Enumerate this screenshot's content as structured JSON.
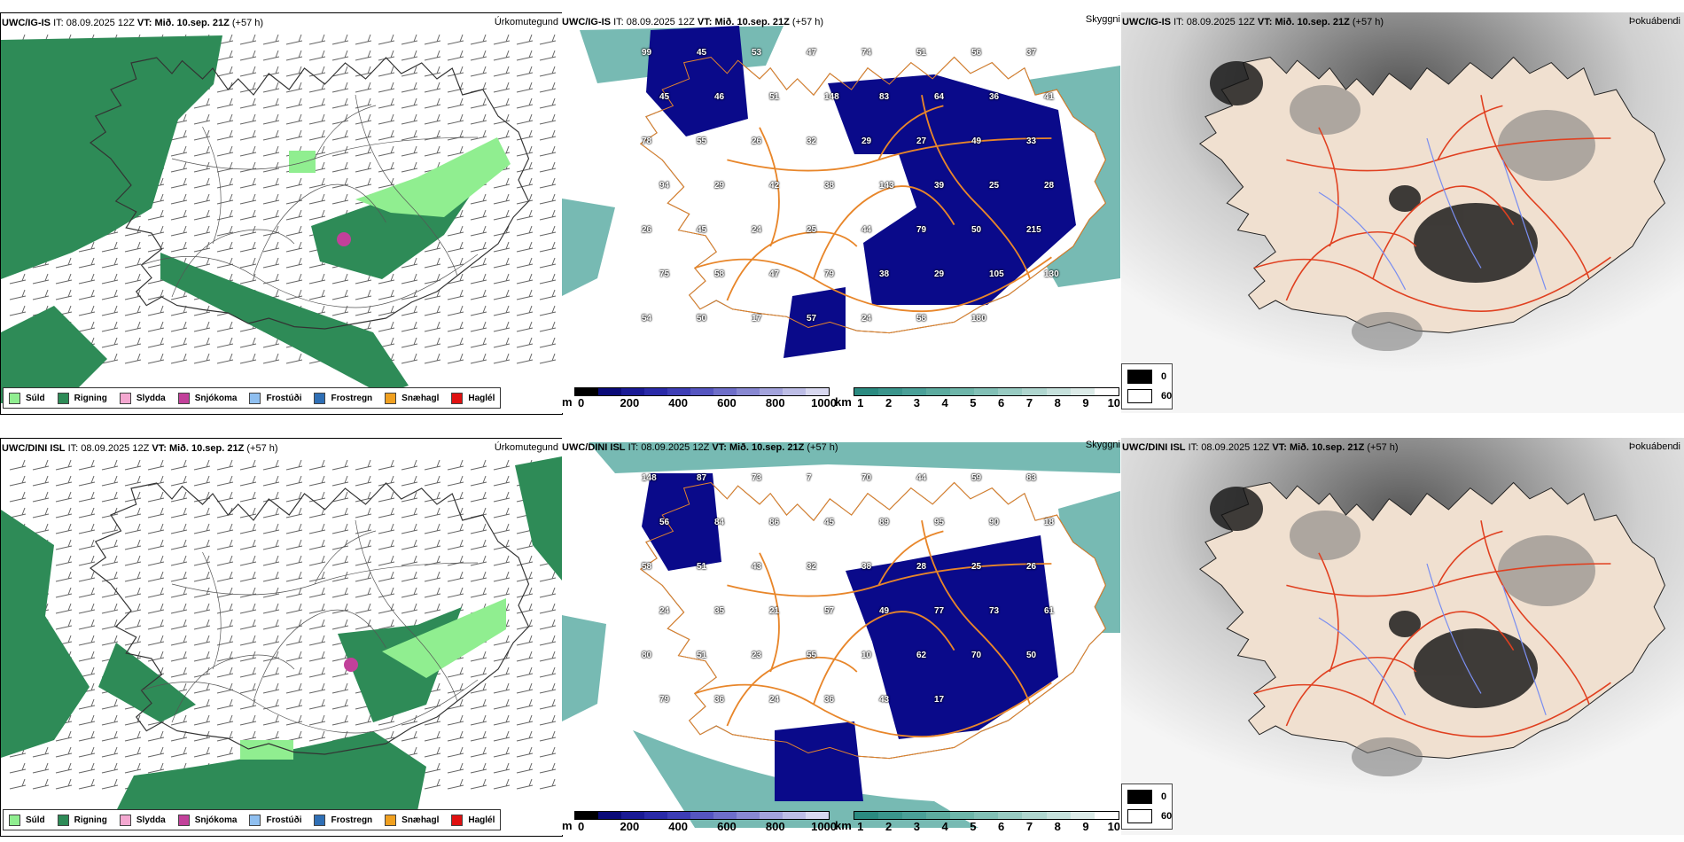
{
  "top": {
    "precip": {
      "model": "UWC/IG-IS",
      "it_label": "IT:",
      "it": "08.09.2025 12Z",
      "vt_label": "VT:",
      "vt": "Mið. 10.sep. 21Z",
      "lead": "(+57 h)",
      "right": "Úrkomutegund"
    },
    "ceiling": {
      "model": "UWC/IG-IS",
      "it_label": "IT:",
      "it": "08.09.2025 12Z",
      "vt_label": "VT:",
      "vt": "Mið. 10.sep. 21Z",
      "lead": "(+57 h)",
      "right": "Skyggni",
      "numbers": [
        "99",
        "45",
        "53",
        "47",
        "74",
        "51",
        "56",
        "37",
        "45",
        "46",
        "51",
        "148",
        "83",
        "64",
        "36",
        "41",
        "78",
        "55",
        "26",
        "32",
        "29",
        "27",
        "49",
        "33",
        "94",
        "29",
        "42",
        "38",
        "143",
        "39",
        "25",
        "28",
        "26",
        "45",
        "24",
        "25",
        "44",
        "79",
        "50",
        "215",
        "75",
        "58",
        "47",
        "79",
        "38",
        "29",
        "105",
        "130",
        "54",
        "50",
        "17",
        "57",
        "24",
        "58",
        "180"
      ]
    },
    "fog": {
      "model": "UWC/IG-IS",
      "it_label": "IT:",
      "it": "08.09.2025 12Z",
      "vt_label": "VT:",
      "vt": "Mið. 10.sep. 21Z",
      "lead": "(+57 h)",
      "right": "Þokuábendi"
    }
  },
  "bottom": {
    "precip": {
      "model": "UWC/DINI ISL",
      "it_label": "IT:",
      "it": "08.09.2025 12Z",
      "vt_label": "VT:",
      "vt": "Mið. 10.sep. 21Z",
      "lead": "(+57 h)",
      "right": "Úrkomutegund"
    },
    "ceiling": {
      "model": "UWC/DINI ISL",
      "it_label": "IT:",
      "it": "08.09.2025 12Z",
      "vt_label": "VT:",
      "vt": "Mið. 10.sep. 21Z",
      "lead": "(+57 h)",
      "right": "Skyggni",
      "numbers": [
        "148",
        "87",
        "73",
        "7",
        "70",
        "44",
        "59",
        "83",
        "56",
        "84",
        "86",
        "45",
        "89",
        "95",
        "90",
        "18",
        "58",
        "51",
        "43",
        "32",
        "38",
        "28",
        "25",
        "26",
        "24",
        "35",
        "21",
        "57",
        "49",
        "77",
        "73",
        "61",
        "80",
        "51",
        "23",
        "55",
        "10",
        "62",
        "70",
        "50",
        "79",
        "36",
        "24",
        "36",
        "43",
        "17"
      ]
    },
    "fog": {
      "model": "UWC/DINI ISL",
      "it_label": "IT:",
      "it": "08.09.2025 12Z",
      "vt_label": "VT:",
      "vt": "Mið. 10.sep. 21Z",
      "lead": "(+57 h)",
      "right": "Þokuábendi"
    }
  },
  "precip_legend": [
    {
      "label": "Súld",
      "color": "#90ee90"
    },
    {
      "label": "Rigning",
      "color": "#2e8b57"
    },
    {
      "label": "Slydda",
      "color": "#f4a7d0"
    },
    {
      "label": "Snjókoma",
      "color": "#c2409a"
    },
    {
      "label": "Frostúði",
      "color": "#8fbff0"
    },
    {
      "label": "Frostregn",
      "color": "#2f6fb5"
    },
    {
      "label": "Snæhagl",
      "color": "#f0a020"
    },
    {
      "label": "Haglél",
      "color": "#e01010"
    }
  ],
  "ceiling_bar": {
    "unit": "m",
    "ticks": [
      "0",
      "200",
      "400",
      "600",
      "800",
      "1000"
    ],
    "colors": [
      "#000000",
      "#0a0a78",
      "#1a1a95",
      "#2a2aa8",
      "#3d3db5",
      "#5555c0",
      "#6e6ec9",
      "#8888d2",
      "#a3a3dc",
      "#bdbde6",
      "#d8d8f0"
    ]
  },
  "vis_bar": {
    "unit": "km",
    "ticks": [
      "1",
      "2",
      "3",
      "4",
      "5",
      "6",
      "7",
      "8",
      "9",
      "10"
    ],
    "colors": [
      "#2a8a80",
      "#3a958c",
      "#4aa098",
      "#5cab9f",
      "#6eb6aa",
      "#82c0b6",
      "#98cbc2",
      "#afd6cf",
      "#c6e1dc",
      "#dcebe8",
      "#ffffff"
    ]
  },
  "fog_legend": {
    "dark_label": "0",
    "light_label": "60",
    "dark": "#000000",
    "light": "#ffffff"
  },
  "colors": {
    "island": "#f0e0d0",
    "road": "#e8862a",
    "roadRed": "#e04020",
    "river": "#7a8ef0",
    "rain": "#2e8b57",
    "drizzle": "#90ee90",
    "cloud": "#0a0a8a",
    "vis": "#4aa39a"
  }
}
